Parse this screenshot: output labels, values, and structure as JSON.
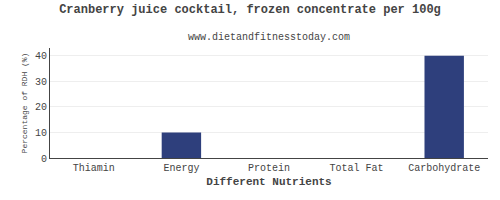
{
  "chart_data": {
    "type": "bar",
    "title": "Cranberry juice cocktail, frozen concentrate per 100g",
    "subtitle": "www.dietandfitnesstoday.com",
    "xlabel": "Different Nutrients",
    "ylabel": "Percentage of RDH (%)",
    "categories": [
      "Thiamin",
      "Energy",
      "Protein",
      "Total Fat",
      "Carbohydrate"
    ],
    "values": [
      0,
      10,
      0,
      0,
      40
    ],
    "color": "#2e3f7c",
    "ylim": [
      0,
      43
    ],
    "yticks": [
      0,
      10,
      20,
      30,
      40
    ],
    "grid": true
  }
}
